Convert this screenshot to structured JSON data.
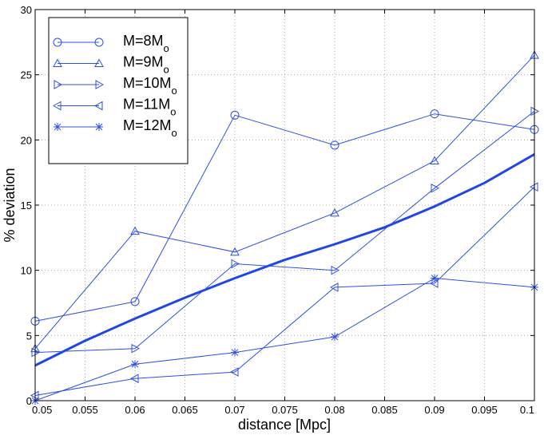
{
  "chart_data": {
    "type": "line",
    "xlabel": "distance [Mpc]",
    "ylabel": "% deviation",
    "xlim": [
      0.05,
      0.1
    ],
    "ylim": [
      0,
      30
    ],
    "xticks": [
      0.05,
      0.055,
      0.06,
      0.065,
      0.07,
      0.075,
      0.08,
      0.085,
      0.09,
      0.095,
      0.1
    ],
    "xtick_labels": [
      "0.05",
      "0.055",
      "0.06",
      "0.065",
      "0.07",
      "0.075",
      "0.08",
      "0.085",
      "0.09",
      "0.095",
      "0.1"
    ],
    "yticks": [
      0,
      5,
      10,
      15,
      20,
      25,
      30
    ],
    "ytick_labels": [
      "0",
      "5",
      "10",
      "15",
      "20",
      "25",
      "30"
    ],
    "grid": true,
    "legend_position": "top-left",
    "line_color": "#2f4fe0",
    "fit_color": "#2146e6",
    "series": [
      {
        "name": "M=8M",
        "sub": "o",
        "marker": "circle",
        "x": [
          0.05,
          0.06,
          0.07,
          0.08,
          0.09,
          0.1
        ],
        "y": [
          6.1,
          7.6,
          21.9,
          19.6,
          22.0,
          20.8
        ]
      },
      {
        "name": "M=9M",
        "sub": "o",
        "marker": "triangle-up",
        "x": [
          0.05,
          0.06,
          0.07,
          0.08,
          0.09,
          0.1
        ],
        "y": [
          4.0,
          13.0,
          11.4,
          14.4,
          18.4,
          26.5
        ]
      },
      {
        "name": "M=10M",
        "sub": "o",
        "marker": "triangle-right",
        "x": [
          0.05,
          0.06,
          0.07,
          0.08,
          0.09,
          0.1
        ],
        "y": [
          3.7,
          4.0,
          10.5,
          10.0,
          16.3,
          22.2
        ]
      },
      {
        "name": "M=11M",
        "sub": "o",
        "marker": "triangle-left",
        "x": [
          0.05,
          0.06,
          0.07,
          0.08,
          0.09,
          0.1
        ],
        "y": [
          0.4,
          1.7,
          2.2,
          8.7,
          9.0,
          16.4
        ]
      },
      {
        "name": "M=12M",
        "sub": "o",
        "marker": "star",
        "x": [
          0.05,
          0.06,
          0.07,
          0.08,
          0.09,
          0.1
        ],
        "y": [
          0.0,
          2.8,
          3.7,
          4.9,
          9.4,
          8.7
        ]
      }
    ],
    "fit_curve": {
      "x": [
        0.05,
        0.055,
        0.06,
        0.065,
        0.07,
        0.075,
        0.08,
        0.085,
        0.09,
        0.095,
        0.1
      ],
      "y": [
        2.7,
        4.6,
        6.3,
        7.9,
        9.4,
        10.8,
        12.0,
        13.3,
        14.9,
        16.7,
        18.9
      ]
    }
  }
}
